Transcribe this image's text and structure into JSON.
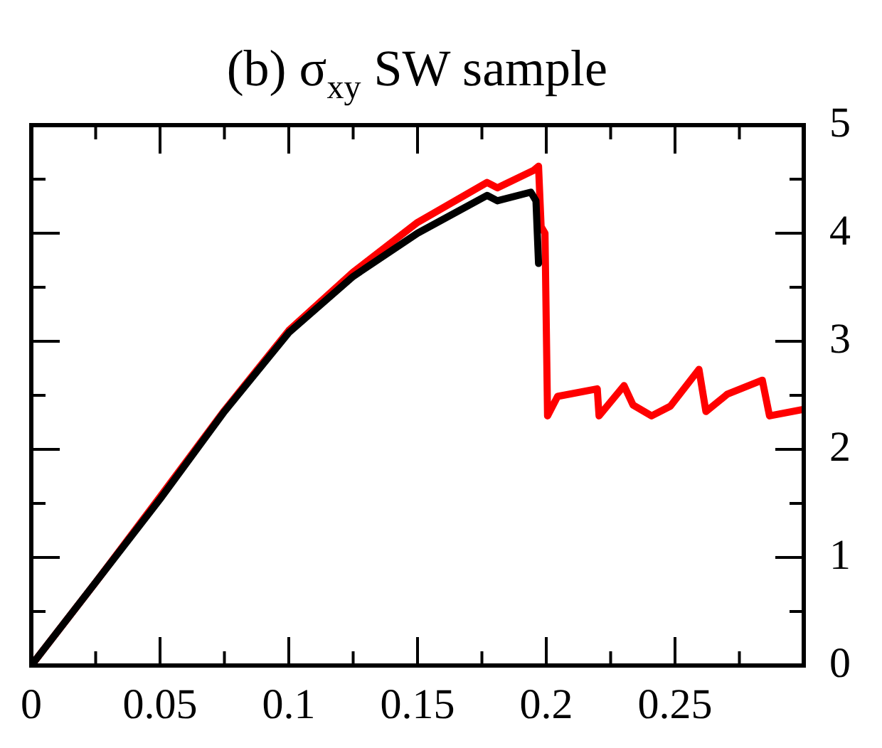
{
  "chart_data": {
    "type": "line",
    "title": "(b) σ$_{xy}$ SW sample",
    "xlim": [
      0,
      0.3
    ],
    "ylim": [
      0,
      5
    ],
    "xticks": [
      0,
      {
        "value": 0.025,
        "label": null
      },
      0.05,
      {
        "value": 0.075,
        "label": null
      },
      0.1,
      {
        "value": 0.125,
        "label": null
      },
      0.15,
      {
        "value": 0.175,
        "label": null
      },
      0.2,
      {
        "value": 0.225,
        "label": null
      },
      0.25,
      {
        "value": 0.275,
        "label": null
      }
    ],
    "yticks": [
      0,
      {
        "value": 0.5,
        "label": null
      },
      1,
      {
        "value": 1.5,
        "label": null
      },
      2,
      {
        "value": 2.5,
        "label": null
      },
      3,
      {
        "value": 3.5,
        "label": null
      },
      4,
      {
        "value": 4.5,
        "label": null
      },
      5
    ],
    "tick_labels": "xy",
    "legend": false,
    "marker": "none",
    "line_style": "solid",
    "series": [
      {
        "color": "#000000",
        "x": [
          0,
          0.025,
          0.05,
          0.075,
          0.1,
          0.125,
          0.15,
          0.177,
          0.181,
          0.194,
          0.196,
          0.197
        ],
        "values": [
          0,
          0.77,
          1.54,
          2.35,
          3.08,
          3.6,
          4.0,
          4.35,
          4.3,
          4.38,
          4.3,
          3.72
        ]
      },
      {
        "color": "#ff0000",
        "x": [
          0,
          0.025,
          0.05,
          0.075,
          0.1,
          0.125,
          0.15,
          0.177,
          0.181,
          0.195,
          0.197,
          0.198,
          0.1995,
          0.2005,
          0.2044,
          0.2198,
          0.2205,
          0.2302,
          0.2337,
          0.2409,
          0.2482,
          0.2593,
          0.262,
          0.2703,
          0.2839,
          0.2867,
          0.3
        ],
        "values": [
          0,
          0.77,
          1.56,
          2.36,
          3.1,
          3.64,
          4.1,
          4.47,
          4.42,
          4.58,
          4.62,
          4.06,
          4.0,
          2.31,
          2.49,
          2.56,
          2.31,
          2.59,
          2.41,
          2.31,
          2.4,
          2.74,
          2.35,
          2.51,
          2.64,
          2.31,
          2.37
        ]
      }
    ]
  }
}
